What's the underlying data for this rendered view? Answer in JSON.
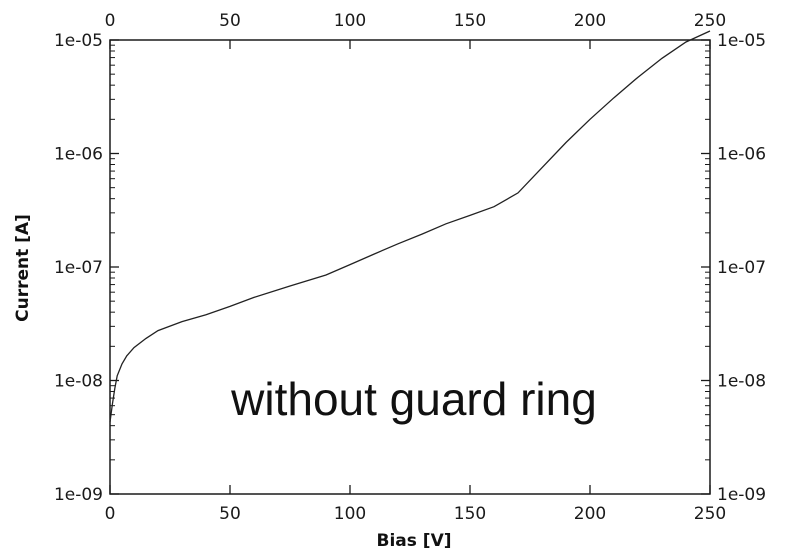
{
  "chart_data": {
    "type": "line",
    "title": "",
    "xlabel": "Bias [V]",
    "ylabel": "Current [A]",
    "xlim": [
      0,
      250
    ],
    "ylim": [
      1e-09,
      1e-05
    ],
    "yscale": "log",
    "x_ticks": [
      "0",
      "50",
      "100",
      "150",
      "200",
      "250"
    ],
    "y_ticks": [
      "1e-09",
      "1e-08",
      "1e-07",
      "1e-06",
      "1e-05"
    ],
    "mirrored_axes": "top and right",
    "grid": false,
    "legend": "none",
    "annotation": "without guard ring",
    "line_color": "#222222",
    "series": [
      {
        "x": [
          0,
          1,
          2,
          3,
          5,
          7,
          10,
          15,
          20,
          30,
          40,
          50,
          60,
          75,
          90,
          100,
          110,
          120,
          130,
          140,
          150,
          160,
          170,
          180,
          190,
          200,
          210,
          220,
          230,
          240,
          250
        ],
        "y": [
          4.3e-09,
          6.2e-09,
          8.5e-09,
          1.1e-08,
          1.4e-08,
          1.65e-08,
          1.95e-08,
          2.35e-08,
          2.75e-08,
          3.3e-08,
          3.8e-08,
          4.5e-08,
          5.4e-08,
          6.8e-08,
          8.5e-08,
          1.05e-07,
          1.3e-07,
          1.6e-07,
          1.95e-07,
          2.4e-07,
          2.85e-07,
          3.4e-07,
          4.5e-07,
          7.5e-07,
          1.25e-06,
          2e-06,
          3.1e-06,
          4.7e-06,
          6.9e-06,
          9.6e-06,
          1.2e-05
        ]
      }
    ]
  }
}
